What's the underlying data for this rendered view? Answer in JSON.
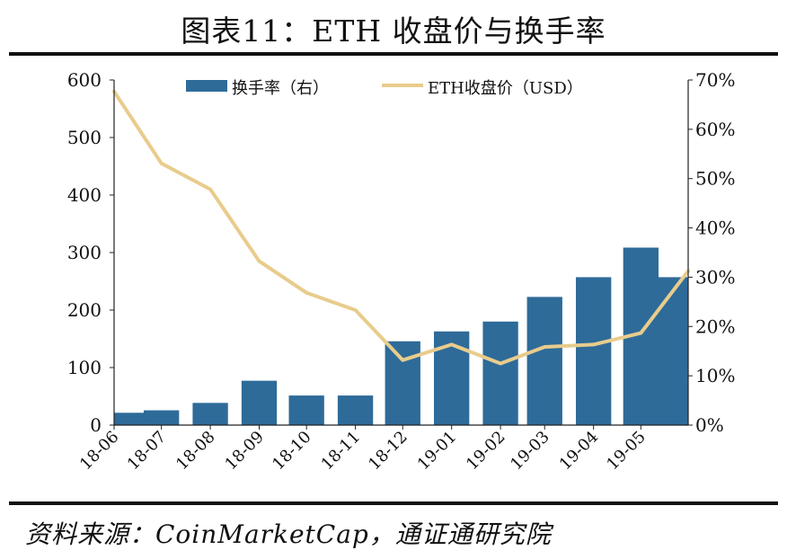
{
  "title": "图表11：ETH 收盘价与换手率",
  "source": "资料来源：CoinMarketCap，通证通研究院",
  "chart_data": {
    "type": "bar+line",
    "x_tick_labels": [
      "18-06",
      "18-07",
      "18-08",
      "18-09",
      "18-10",
      "18-11",
      "18-12",
      "19-01",
      "19-02",
      "19-03",
      "19-04",
      "19-05"
    ],
    "legend": {
      "turnover": "换手率（右）",
      "price": "ETH收盘价（USD）"
    },
    "y_left": {
      "min": 0,
      "max": 600,
      "ticks": [
        "0",
        "100",
        "200",
        "300",
        "400",
        "500",
        "600"
      ]
    },
    "y_right": {
      "min": 0,
      "max": 0.7,
      "ticks": [
        "0%",
        "10%",
        "20%",
        "30%",
        "40%",
        "50%",
        "60%",
        "70%"
      ]
    },
    "colors": {
      "bar": "#2e6b99",
      "line": "#e8cc8c"
    },
    "series": [
      {
        "name": "换手率（右）",
        "axis": "right",
        "kind": "bar",
        "x": [
          "2018-06-01",
          "2018-07-01",
          "2018-08-01",
          "2018-09-01",
          "2018-10-01",
          "2018-11-01",
          "2018-12-01",
          "2019-01-01",
          "2019-02-01",
          "2019-03-01",
          "2019-04-01",
          "2019-05-01",
          "2019-05-31"
        ],
        "values": [
          0.025,
          0.03,
          0.045,
          0.09,
          0.06,
          0.06,
          0.17,
          0.19,
          0.21,
          0.26,
          0.3,
          0.36,
          0.3
        ]
      },
      {
        "name": "ETH收盘价（USD）",
        "axis": "left",
        "kind": "line",
        "x": [
          "2018-06-01",
          "2018-07-01",
          "2018-08-01",
          "2018-09-01",
          "2018-10-01",
          "2018-11-01",
          "2018-12-01",
          "2019-01-01",
          "2019-02-01",
          "2019-03-01",
          "2019-04-01",
          "2019-05-01",
          "2019-05-31"
        ],
        "values": [
          580,
          455,
          410,
          285,
          230,
          200,
          113,
          140,
          107,
          136,
          140,
          160,
          268
        ]
      }
    ]
  }
}
